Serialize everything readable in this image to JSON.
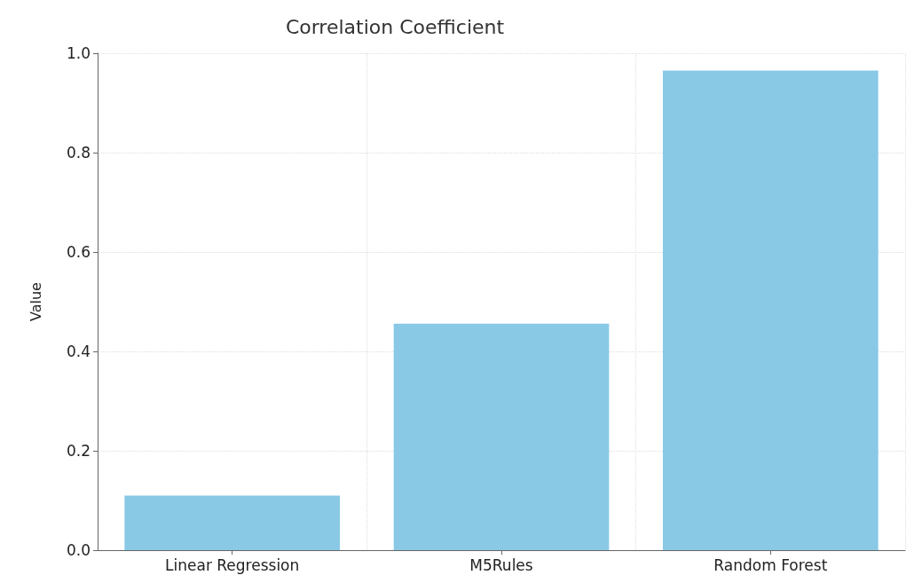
{
  "chart_data": {
    "type": "bar",
    "title": "Correlation Coefficient",
    "ylabel": "Value",
    "categories": [
      "Linear Regression",
      "M5Rules",
      "Random Forest"
    ],
    "values": [
      0.11,
      0.456,
      0.965
    ],
    "color": "#89c9e6",
    "ylim": [
      0,
      1.0
    ],
    "yticks": [
      {
        "value": 0,
        "label": "0.0"
      },
      {
        "value": 0.2,
        "label": "0.2"
      },
      {
        "value": 0.4,
        "label": "0.4"
      },
      {
        "value": 0.6,
        "label": "0.6"
      },
      {
        "value": 0.8,
        "label": "0.8"
      },
      {
        "value": 1.0,
        "label": "1.0"
      }
    ],
    "grid": true
  }
}
